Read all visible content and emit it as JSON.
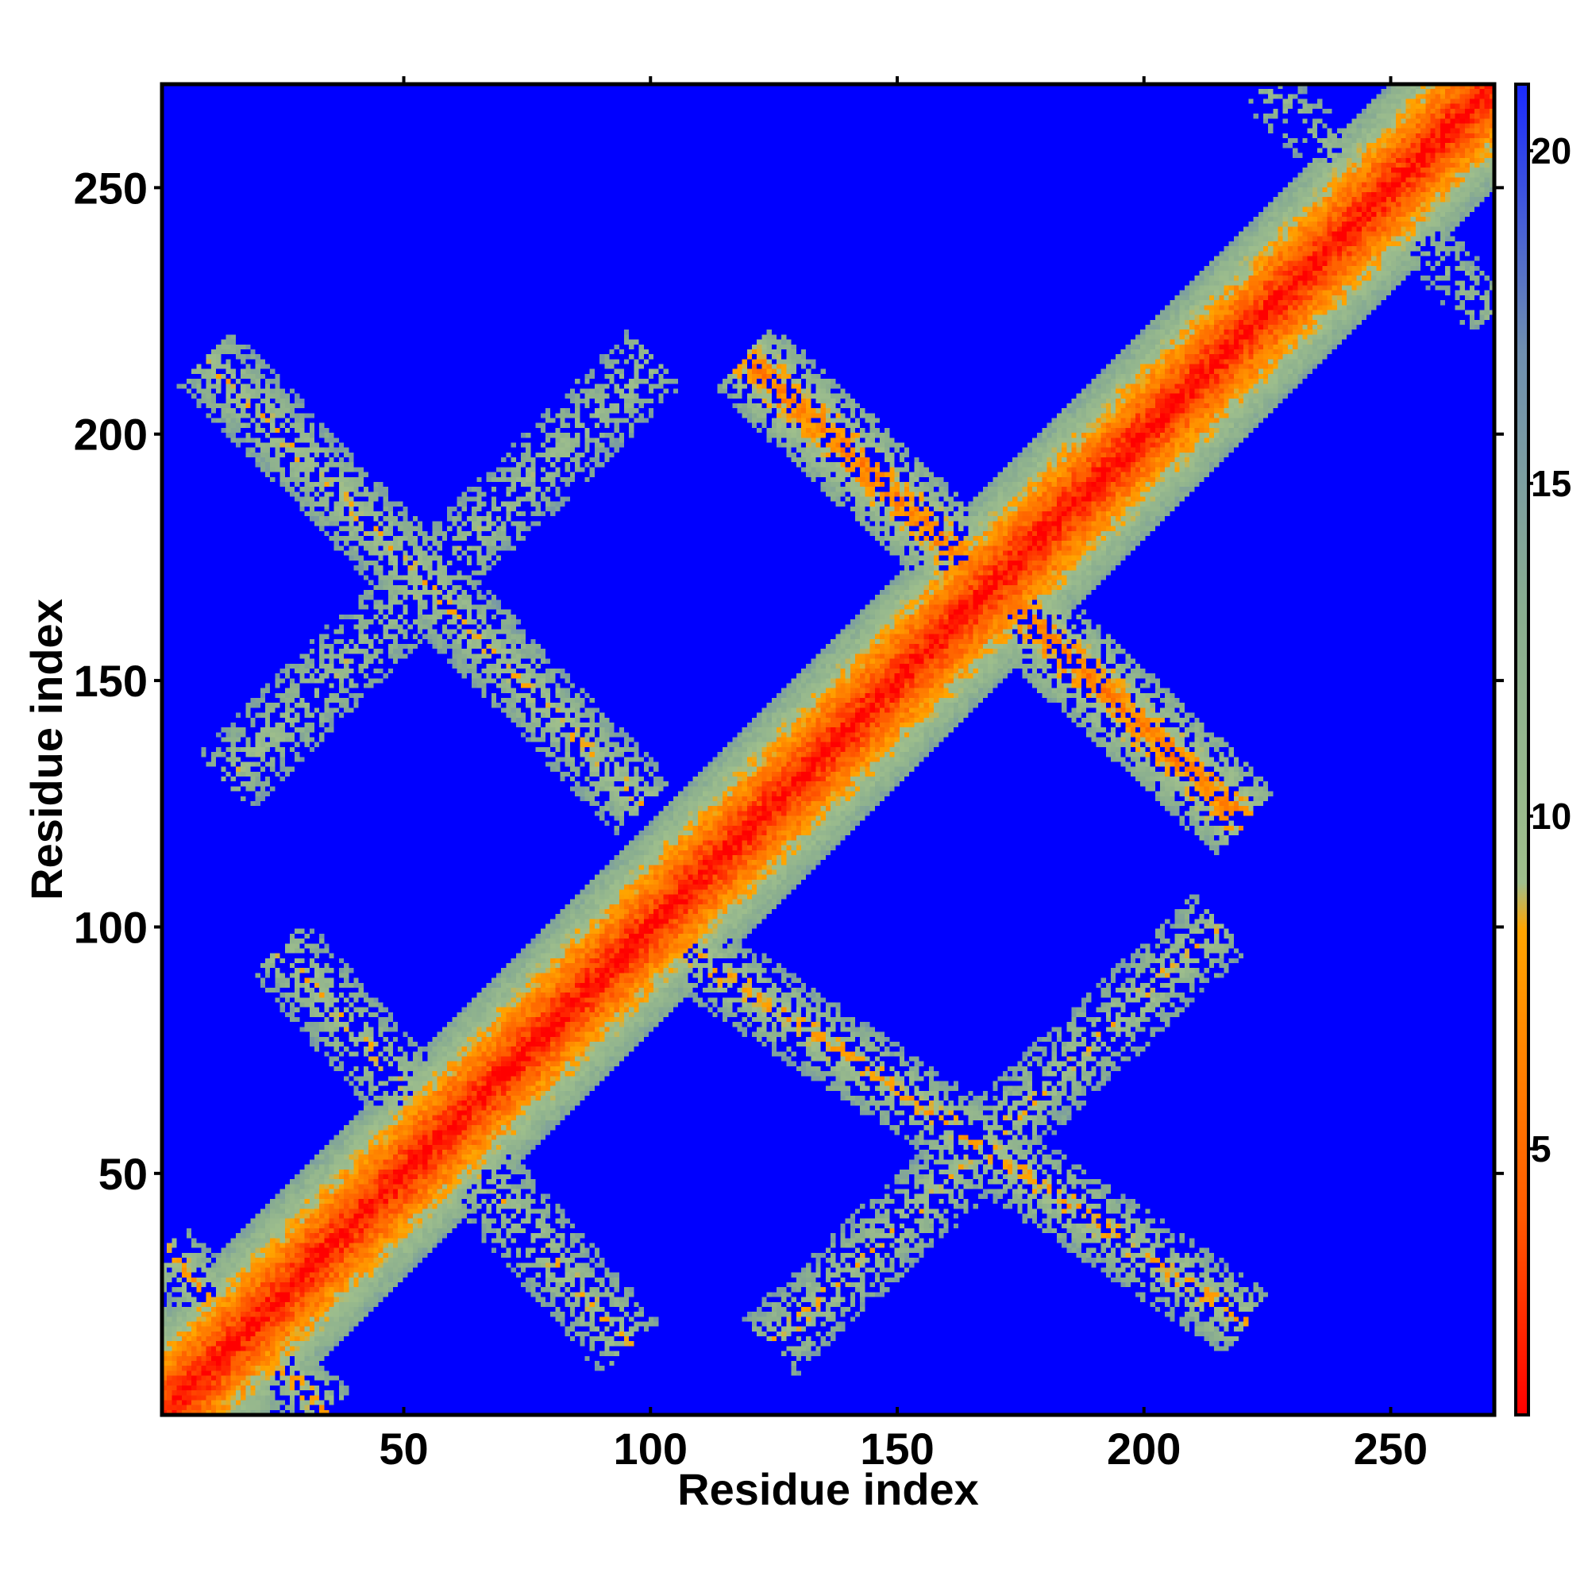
{
  "chart_data": {
    "type": "heatmap",
    "title": "",
    "xlabel": "Residue index",
    "ylabel": "Residue index",
    "xlim": [
      1,
      271
    ],
    "ylim": [
      1,
      271
    ],
    "x_ticks": [
      50,
      100,
      150,
      200,
      250
    ],
    "y_ticks": [
      50,
      100,
      150,
      200,
      250
    ],
    "colorbar": {
      "range": [
        1,
        21
      ],
      "ticks": [
        5,
        10,
        15,
        20
      ],
      "stops": [
        {
          "value": 1,
          "color": "#ff0000"
        },
        {
          "value": 4,
          "color": "#ff5a00"
        },
        {
          "value": 8.3,
          "color": "#ffa500"
        },
        {
          "value": 9,
          "color": "#9fbf8c"
        },
        {
          "value": 13,
          "color": "#8aae8f"
        },
        {
          "value": 17,
          "color": "#6f8fb0"
        },
        {
          "value": 21,
          "color": "#1a2aff"
        }
      ],
      "background_color": "#0000ff"
    },
    "series": [
      {
        "from": [
          1,
          1
        ],
        "to": [
          271,
          271
        ],
        "width": 15,
        "peak": 1,
        "edge": 14,
        "density": 1.0
      },
      {
        "from": [
          10,
          215
        ],
        "to": [
          98,
          125
        ],
        "width": 8,
        "peak": 9,
        "edge": 15,
        "density": 0.62
      },
      {
        "from": [
          14,
          130
        ],
        "to": [
          100,
          215
        ],
        "width": 8,
        "peak": 10,
        "edge": 15,
        "density": 0.5
      },
      {
        "from": [
          120,
          215
        ],
        "to": [
          220,
          122
        ],
        "width": 9,
        "peak": 6,
        "edge": 14,
        "density": 0.72
      },
      {
        "from": [
          25,
          95
        ],
        "to": [
          95,
          15
        ],
        "width": 8,
        "peak": 9,
        "edge": 15,
        "density": 0.5
      },
      {
        "from": [
          100,
          100
        ],
        "to": [
          220,
          20
        ],
        "width": 8,
        "peak": 8,
        "edge": 15,
        "density": 0.6
      },
      {
        "from": [
          125,
          15
        ],
        "to": [
          215,
          100
        ],
        "width": 8,
        "peak": 9,
        "edge": 15,
        "density": 0.55
      },
      {
        "from": [
          1,
          34
        ],
        "to": [
          34,
          1
        ],
        "width": 7,
        "peak": 8,
        "edge": 15,
        "density": 0.55
      },
      {
        "from": [
          225,
          271
        ],
        "to": [
          271,
          225
        ],
        "width": 6,
        "peak": 11,
        "edge": 15,
        "density": 0.4
      }
    ]
  }
}
